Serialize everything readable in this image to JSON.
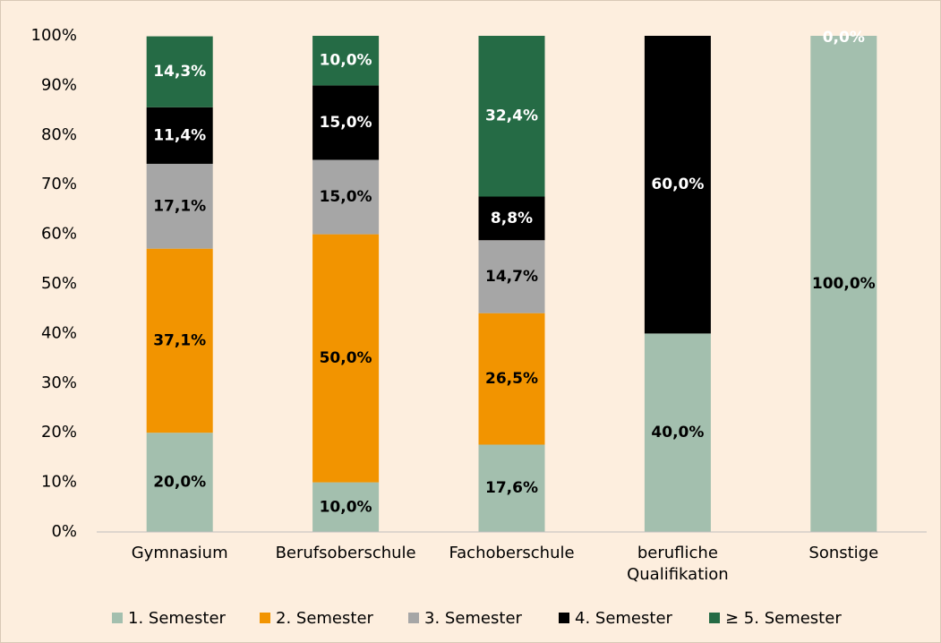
{
  "chart_data": {
    "type": "stacked_bar",
    "categories": [
      "Gymnasium",
      "Berufsoberschule",
      "Fachoberschule",
      "berufliche Qualifikation",
      "Sonstige"
    ],
    "series": [
      {
        "name": "1. Semester",
        "color": "#a3bfae",
        "values": [
          20.0,
          10.0,
          17.6,
          40.0,
          100.0
        ],
        "value_labels": [
          "20,0%",
          "10,0%",
          "17,6%",
          "40,0%",
          "100,0%"
        ]
      },
      {
        "name": "2. Semester",
        "color": "#f29400",
        "values": [
          37.1,
          50.0,
          26.5,
          null,
          null
        ],
        "value_labels": [
          "37,1%",
          "50,0%",
          "26,5%",
          null,
          null
        ]
      },
      {
        "name": "3. Semester",
        "color": "#a6a6a6",
        "values": [
          17.1,
          15.0,
          14.7,
          null,
          null
        ],
        "value_labels": [
          "17,1%",
          "15,0%",
          "14,7%",
          null,
          null
        ]
      },
      {
        "name": "4. Semester",
        "color": "#000000",
        "values": [
          11.4,
          15.0,
          8.8,
          60.0,
          null
        ],
        "value_labels": [
          "11,4%",
          "15,0%",
          "8,8%",
          "60,0%",
          null
        ]
      },
      {
        "name": "≥ 5. Semester",
        "color": "#256b45",
        "values": [
          14.3,
          10.0,
          32.4,
          null,
          0.0
        ],
        "value_labels": [
          "14,3%",
          "10,0%",
          "32,4%",
          null,
          "0,0%"
        ]
      }
    ],
    "ylim": [
      0,
      100
    ],
    "yticks": [
      {
        "value": 0,
        "label": "0%"
      },
      {
        "value": 10,
        "label": "10%"
      },
      {
        "value": 20,
        "label": "20%"
      },
      {
        "value": 30,
        "label": "30%"
      },
      {
        "value": 40,
        "label": "40%"
      },
      {
        "value": 50,
        "label": "50%"
      },
      {
        "value": 60,
        "label": "60%"
      },
      {
        "value": 70,
        "label": "70%"
      },
      {
        "value": 80,
        "label": "80%"
      },
      {
        "value": 90,
        "label": "90%"
      },
      {
        "value": 100,
        "label": "100%"
      }
    ],
    "grid": false,
    "legend": "bottom"
  }
}
